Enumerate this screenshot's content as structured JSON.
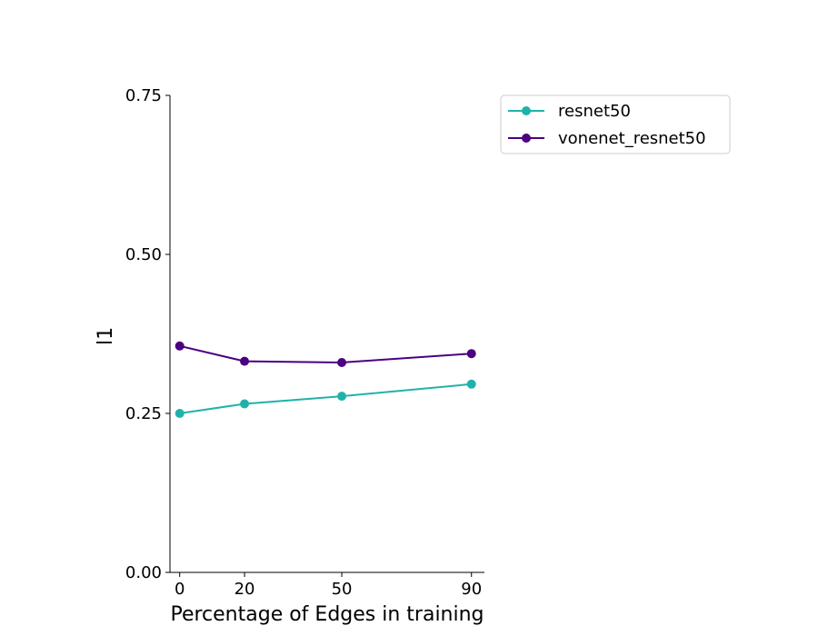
{
  "chart_data": {
    "type": "line",
    "title": "",
    "xlabel": "Percentage of Edges in training",
    "ylabel": "l1",
    "x": [
      0,
      20,
      50,
      90
    ],
    "x_ticks": [
      "0",
      "20",
      "50",
      "90"
    ],
    "xlim": [
      -3,
      94
    ],
    "ylim": [
      0,
      0.75
    ],
    "y_ticks": [
      "0.00",
      "0.25",
      "0.50",
      "0.75"
    ],
    "grid": false,
    "legend_position": "top-right outside",
    "series": [
      {
        "name": "resnet50",
        "color": "#20b2aa",
        "values": [
          0.25,
          0.265,
          0.277,
          0.296
        ]
      },
      {
        "name": "vonenet_resnet50",
        "color": "#4b0082",
        "values": [
          0.356,
          0.332,
          0.33,
          0.344
        ]
      }
    ]
  }
}
